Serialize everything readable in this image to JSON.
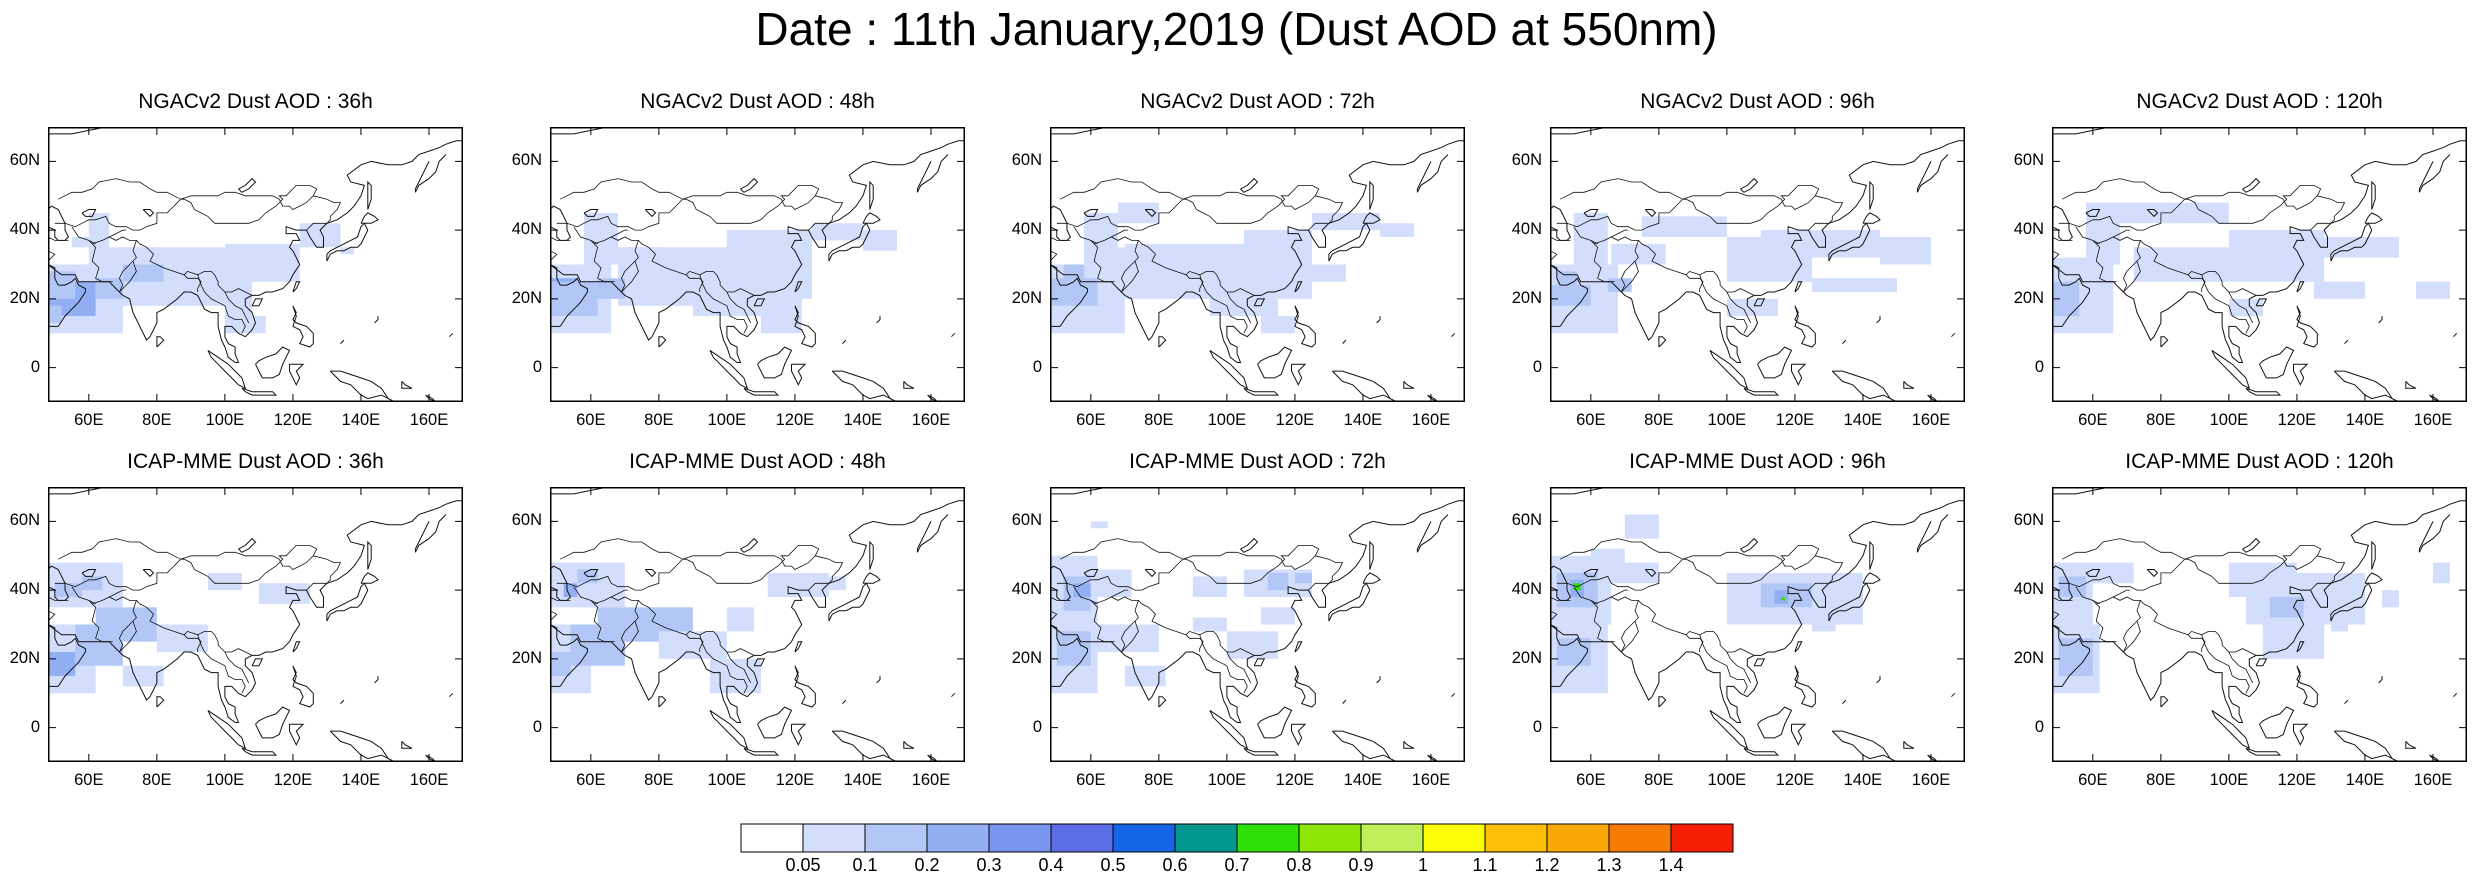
{
  "title": "Date : 11th January,2019 (Dust AOD at 550nm)",
  "panels": [
    {
      "title": "NGACv2 Dust AOD : 36h"
    },
    {
      "title": "NGACv2 Dust AOD : 48h"
    },
    {
      "title": "NGACv2 Dust AOD : 72h"
    },
    {
      "title": "NGACv2 Dust AOD : 96h"
    },
    {
      "title": "NGACv2 Dust AOD : 120h"
    },
    {
      "title": "ICAP-MME Dust AOD : 36h"
    },
    {
      "title": "ICAP-MME Dust AOD : 48h"
    },
    {
      "title": "ICAP-MME Dust AOD : 72h"
    },
    {
      "title": "ICAP-MME Dust AOD : 96h"
    },
    {
      "title": "ICAP-MME Dust AOD : 120h"
    }
  ],
  "map_extent": {
    "lon": [
      48,
      170
    ],
    "lat": [
      -10,
      70
    ]
  },
  "lon_ticks": [
    "60E",
    "80E",
    "100E",
    "120E",
    "140E",
    "160E"
  ],
  "lat_ticks": [
    "60N",
    "40N",
    "20N",
    "0"
  ],
  "colorbar": {
    "labels": [
      "0.05",
      "0.1",
      "0.2",
      "0.3",
      "0.4",
      "0.5",
      "0.6",
      "0.7",
      "0.8",
      "0.9",
      "1",
      "1.1",
      "1.2",
      "1.3",
      "1.4"
    ],
    "colors": [
      "#ffffff",
      "#d2defb",
      "#b3c7f7",
      "#93aff4",
      "#7a95ef",
      "#5b6ee8",
      "#1466e6",
      "#02988f",
      "#2fe007",
      "#8ee506",
      "#bff05a",
      "#fcfc05",
      "#fbc005",
      "#f9a805",
      "#f77c05",
      "#f61e05"
    ]
  }
}
